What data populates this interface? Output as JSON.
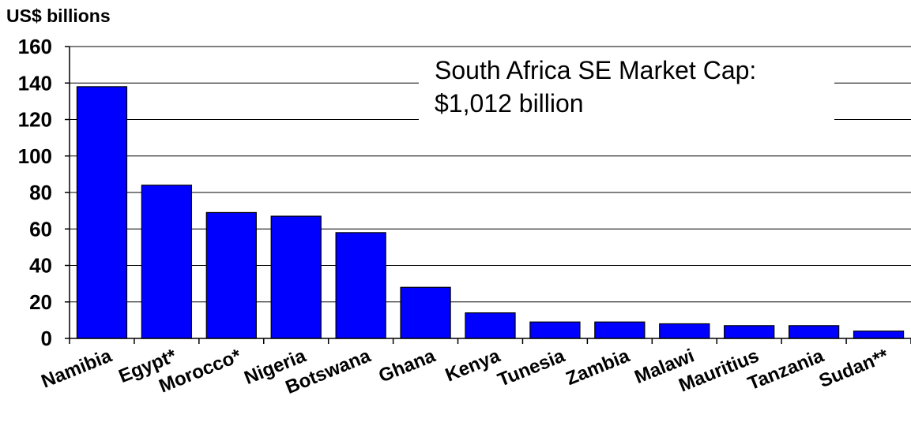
{
  "chart_data": {
    "type": "bar",
    "ylabel": "US$ billions",
    "ylim": [
      0,
      160
    ],
    "yticks": [
      0,
      20,
      40,
      60,
      80,
      100,
      120,
      140,
      160
    ],
    "grid": true,
    "categories": [
      "Namibia",
      "Egypt*",
      "Morocco*",
      "Nigeria",
      "Botswana",
      "Ghana",
      "Kenya",
      "Tunesia",
      "Zambia",
      "Malawi",
      "Mauritius",
      "Tanzania",
      "Sudan**"
    ],
    "values": [
      138,
      84,
      69,
      67,
      58,
      28,
      14,
      9,
      9,
      8,
      7,
      7,
      4
    ],
    "bar_color": "#0000ff",
    "annotation": {
      "line1": "South Africa SE Market Cap:",
      "line2": "$1,012 billion"
    }
  }
}
